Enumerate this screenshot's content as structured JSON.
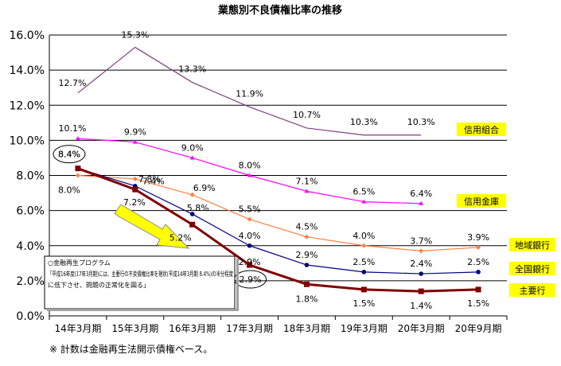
{
  "chart_data": {
    "type": "line",
    "title": "業態別不良債権比率の推移",
    "categories": [
      "14年3月期",
      "15年3月期",
      "16年3月期",
      "17年3月期",
      "18年3月期",
      "19年3月期",
      "20年3月期",
      "20年9月期"
    ],
    "yticks": [
      "0.0%",
      "2.0%",
      "4.0%",
      "6.0%",
      "8.0%",
      "10.0%",
      "12.0%",
      "14.0%",
      "16.0%"
    ],
    "ylim": [
      0,
      16
    ],
    "grid": true,
    "series": [
      {
        "name": "信用組合",
        "color": "#7F3F7F",
        "values": [
          12.7,
          15.3,
          13.3,
          11.9,
          10.7,
          10.3,
          10.3,
          null
        ],
        "labels": [
          "12.7%",
          "15.3%",
          "13.3%",
          "11.9%",
          "10.7%",
          "10.3%",
          "10.3%",
          null
        ]
      },
      {
        "name": "信用金庫",
        "color": "#FF00FF",
        "values": [
          10.1,
          9.9,
          9.0,
          8.0,
          7.1,
          6.5,
          6.4,
          null
        ],
        "labels": [
          "10.1%",
          "9.9%",
          "9.0%",
          "8.0%",
          "7.1%",
          "6.5%",
          "6.4%",
          null
        ]
      },
      {
        "name": "地域銀行",
        "color": "#FF8040",
        "values": [
          8.0,
          7.8,
          6.9,
          5.5,
          4.5,
          4.0,
          3.7,
          3.9
        ],
        "labels": [
          "8.0%",
          "7.8%",
          "6.9%",
          "5.5%",
          "4.5%",
          "4.0%",
          "3.7%",
          "3.9%"
        ]
      },
      {
        "name": "全国銀行",
        "color": "#000080",
        "values": [
          8.4,
          7.4,
          5.8,
          4.0,
          2.9,
          2.5,
          2.4,
          2.5
        ],
        "labels": [
          "8.4%",
          "7.4%",
          "5.8%",
          "4.0%",
          "2.9%",
          "2.5%",
          "2.4%",
          "2.5%"
        ]
      },
      {
        "name": "主要行",
        "color": "#800000",
        "values": [
          8.4,
          7.2,
          5.2,
          2.9,
          1.8,
          1.5,
          1.4,
          1.5
        ],
        "labels": [
          null,
          "7.2%",
          "5.2%",
          "2.9%",
          "1.8%",
          "1.5%",
          "1.4%",
          "1.5%"
        ]
      }
    ],
    "legend_color": "#FFFF00",
    "annotation": {
      "heading": "○金融再生プログラム",
      "lines": [
        "「平成16年度(17年3月期)には、主要行の不良債権比率を現状(平成14年3月期 8.4%)の半分程度",
        "に低下させ、問題の正常化を図る」"
      ]
    },
    "footnote": "※ 計数は金融再生法開示債権ベース。"
  }
}
